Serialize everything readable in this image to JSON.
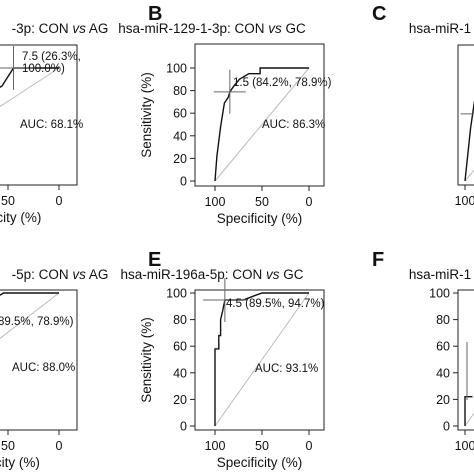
{
  "chart_data": [
    {
      "panel": "",
      "title_prefix": "-3p: CON ",
      "title_vs": "vs",
      "title_suffix": " AG",
      "type": "line",
      "xlabel": "ificity (%)",
      "ylabel": "",
      "x_ticks": [
        "50",
        "0"
      ],
      "y_ticks": [],
      "xlim": [
        100,
        0
      ],
      "ylim": [
        0,
        100
      ],
      "roc": [
        [
          49,
          62
        ],
        [
          40,
          78
        ],
        [
          33,
          84
        ],
        [
          26.3,
          100
        ],
        [
          0,
          100
        ]
      ],
      "cutoff_label": [
        "7.5 (26.3%,",
        "100.0%)"
      ],
      "cutoff": [
        26.3,
        100
      ],
      "auc_label": "AUC: 68.1%"
    },
    {
      "panel": "B",
      "title_prefix": "hsa-miR-129-1-3p: CON ",
      "title_vs": "vs",
      "title_suffix": " GC",
      "type": "line",
      "xlabel": "Specificity (%)",
      "ylabel": "Sensitivity (%)",
      "x_ticks": [
        "100",
        "50",
        "0"
      ],
      "y_ticks": [
        "0",
        "20",
        "40",
        "60",
        "80",
        "100"
      ],
      "xlim": [
        100,
        0
      ],
      "ylim": [
        0,
        100
      ],
      "roc": [
        [
          100,
          0
        ],
        [
          98,
          22
        ],
        [
          94,
          48
        ],
        [
          90,
          69
        ],
        [
          86,
          74
        ],
        [
          84.2,
          78.9
        ],
        [
          80,
          84
        ],
        [
          74,
          90
        ],
        [
          64,
          95
        ],
        [
          52,
          95
        ],
        [
          52,
          100
        ],
        [
          0,
          100
        ]
      ],
      "cutoff_label": [
        "1.5 (84.2%, 78.9%)"
      ],
      "cutoff": [
        84.2,
        78.9
      ],
      "auc_label": "AUC: 86.3%"
    },
    {
      "panel": "C",
      "title_prefix": "hsa-miR-1",
      "title_vs": "",
      "title_suffix": "",
      "type": "line",
      "xlabel": "",
      "ylabel": "",
      "x_ticks": [
        "100"
      ],
      "y_ticks": [],
      "xlim": [
        100,
        0
      ],
      "ylim": [
        0,
        100
      ],
      "roc": [
        [
          100,
          0
        ],
        [
          94,
          47
        ],
        [
          90,
          70
        ],
        [
          86,
          85
        ]
      ],
      "cutoff_label": [],
      "cutoff": [
        94,
        47
      ],
      "auc_label": ""
    },
    {
      "panel": "",
      "title_prefix": "-5p: CON ",
      "title_vs": "vs",
      "title_suffix": " AG",
      "type": "line",
      "xlabel": "ficity (%)",
      "ylabel": "",
      "x_ticks": [
        "50",
        "0"
      ],
      "y_ticks": [],
      "xlim": [
        100,
        0
      ],
      "ylim": [
        0,
        100
      ],
      "roc": [
        [
          58,
          76
        ],
        [
          50,
          86
        ],
        [
          46,
          90
        ],
        [
          40,
          94
        ],
        [
          32,
          100
        ],
        [
          0,
          100
        ]
      ],
      "cutoff_label": [
        "89.5%, 78.9%)"
      ],
      "cutoff": [
        89.5,
        78.9
      ],
      "auc_label": "AUC: 88.0%"
    },
    {
      "panel": "E",
      "title_prefix": "hsa-miR-196a-5p: CON ",
      "title_vs": "vs",
      "title_suffix": " GC",
      "type": "line",
      "xlabel": "Specificity (%)",
      "ylabel": "Sensitivity (%)",
      "x_ticks": [
        "100",
        "50",
        "0"
      ],
      "y_ticks": [
        "0",
        "20",
        "40",
        "60",
        "80",
        "100"
      ],
      "xlim": [
        100,
        0
      ],
      "ylim": [
        0,
        100
      ],
      "roc": [
        [
          100,
          0
        ],
        [
          100,
          58
        ],
        [
          96,
          58
        ],
        [
          96,
          68
        ],
        [
          94,
          68
        ],
        [
          94,
          80
        ],
        [
          92,
          86
        ],
        [
          89.5,
          94.7
        ],
        [
          70,
          94.7
        ],
        [
          58,
          98
        ],
        [
          50,
          100
        ],
        [
          0,
          100
        ]
      ],
      "cutoff_label": [
        "4.5 (89.5%, 94.7%)"
      ],
      "cutoff": [
        89.5,
        94.7
      ],
      "auc_label": "AUC: 93.1%"
    },
    {
      "panel": "F",
      "title_prefix": "hsa-miR-1",
      "title_vs": "",
      "title_suffix": "",
      "type": "line",
      "xlabel": "",
      "ylabel": "",
      "x_ticks": [
        "100"
      ],
      "y_ticks": [
        "0",
        "20",
        "40",
        "60",
        "80",
        "100"
      ],
      "xlim": [
        100,
        0
      ],
      "ylim": [
        0,
        100
      ],
      "roc": [
        [
          100,
          0
        ],
        [
          100,
          22
        ],
        [
          92,
          22
        ]
      ],
      "cutoff_label": [],
      "cutoff": [
        96,
        22
      ],
      "auc_label": ""
    }
  ]
}
